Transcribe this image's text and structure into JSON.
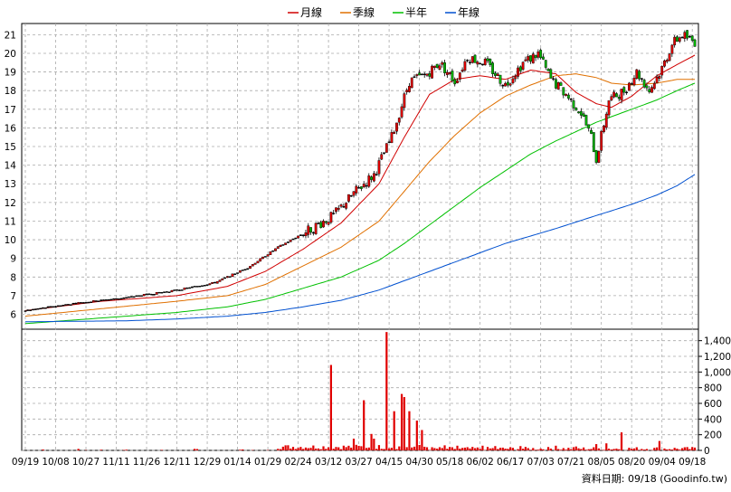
{
  "chart_data": {
    "type": "candlestick",
    "legend": {
      "placement": "top-center",
      "items": [
        {
          "name": "月線",
          "color": "#d00000"
        },
        {
          "name": "季線",
          "color": "#e07000"
        },
        {
          "name": "半年",
          "color": "#00c000"
        },
        {
          "name": "年線",
          "color": "#0050d0"
        }
      ]
    },
    "price_axis": {
      "ylim": [
        5.2,
        21.6
      ],
      "ticks": [
        6,
        7,
        8,
        9,
        10,
        11,
        12,
        13,
        14,
        15,
        16,
        17,
        18,
        19,
        20,
        21
      ],
      "grid": true
    },
    "volume_axis": {
      "ylim": [
        0,
        1500
      ],
      "ticks": [
        0,
        200,
        400,
        600,
        800,
        1000,
        1200,
        1400
      ],
      "tick_labels": [
        "0",
        "200",
        "400",
        "600",
        "800",
        "1,000",
        "1,200",
        "1,400"
      ]
    },
    "x_axis": {
      "tick_labels": [
        "09/19",
        "10/08",
        "10/27",
        "11/11",
        "11/26",
        "12/11",
        "12/29",
        "01/14",
        "01/29",
        "02/24",
        "03/12",
        "03/27",
        "04/15",
        "04/30",
        "05/18",
        "06/02",
        "06/17",
        "07/03",
        "07/21",
        "08/05",
        "08/20",
        "09/04",
        "09/18"
      ],
      "tick_index": [
        0,
        12,
        24,
        36,
        48,
        60,
        72,
        84,
        96,
        108,
        120,
        132,
        144,
        156,
        168,
        180,
        192,
        204,
        216,
        228,
        240,
        252,
        264
      ]
    },
    "footer": "資料日期: 09/18  (Goodinfo.tw)",
    "bars": 266,
    "price_anchors": [
      [
        0,
        6.2
      ],
      [
        20,
        6.6
      ],
      [
        40,
        6.9
      ],
      [
        60,
        7.3
      ],
      [
        75,
        7.7
      ],
      [
        88,
        8.5
      ],
      [
        100,
        9.6
      ],
      [
        112,
        10.5
      ],
      [
        122,
        11.3
      ],
      [
        130,
        12.5
      ],
      [
        138,
        13.5
      ],
      [
        145,
        15.5
      ],
      [
        152,
        18.5
      ],
      [
        158,
        18.8
      ],
      [
        164,
        19.5
      ],
      [
        170,
        18.5
      ],
      [
        175,
        19.8
      ],
      [
        182,
        19.5
      ],
      [
        190,
        18.3
      ],
      [
        197,
        19.5
      ],
      [
        203,
        20.0
      ],
      [
        208,
        18.6
      ],
      [
        214,
        17.8
      ],
      [
        220,
        16.8
      ],
      [
        224,
        15.5
      ],
      [
        226,
        14.3
      ],
      [
        231,
        17.5
      ],
      [
        237,
        18.0
      ],
      [
        242,
        19.0
      ],
      [
        247,
        18.0
      ],
      [
        252,
        19.2
      ],
      [
        256,
        20.5
      ],
      [
        260,
        21.0
      ],
      [
        265,
        20.6
      ]
    ],
    "volume_spikes": [
      [
        121,
        1090
      ],
      [
        134,
        640
      ],
      [
        143,
        1510
      ],
      [
        146,
        500
      ],
      [
        149,
        720
      ],
      [
        150,
        680
      ],
      [
        152,
        500
      ],
      [
        155,
        380
      ],
      [
        157,
        260
      ],
      [
        137,
        210
      ],
      [
        130,
        150
      ],
      [
        138,
        150
      ],
      [
        236,
        230
      ],
      [
        251,
        120
      ],
      [
        230,
        90
      ],
      [
        226,
        80
      ],
      [
        210,
        60
      ],
      [
        166,
        65
      ],
      [
        171,
        60
      ],
      [
        181,
        60
      ],
      [
        186,
        55
      ],
      [
        196,
        55
      ],
      [
        218,
        50
      ]
    ],
    "ma_series": [
      {
        "name": "月線",
        "color": "#d00000",
        "points": [
          [
            0,
            6.2
          ],
          [
            30,
            6.7
          ],
          [
            60,
            7.0
          ],
          [
            80,
            7.5
          ],
          [
            95,
            8.3
          ],
          [
            110,
            9.5
          ],
          [
            125,
            10.9
          ],
          [
            140,
            13.0
          ],
          [
            150,
            15.5
          ],
          [
            160,
            17.8
          ],
          [
            170,
            18.6
          ],
          [
            180,
            18.8
          ],
          [
            190,
            18.6
          ],
          [
            200,
            19.1
          ],
          [
            210,
            18.9
          ],
          [
            218,
            17.9
          ],
          [
            226,
            17.3
          ],
          [
            232,
            17.1
          ],
          [
            240,
            17.7
          ],
          [
            250,
            18.8
          ],
          [
            258,
            19.4
          ],
          [
            265,
            19.9
          ]
        ]
      },
      {
        "name": "季線",
        "color": "#e07000",
        "points": [
          [
            0,
            5.9
          ],
          [
            30,
            6.3
          ],
          [
            60,
            6.7
          ],
          [
            80,
            7.0
          ],
          [
            95,
            7.6
          ],
          [
            110,
            8.6
          ],
          [
            125,
            9.6
          ],
          [
            140,
            11.0
          ],
          [
            150,
            12.6
          ],
          [
            160,
            14.2
          ],
          [
            170,
            15.6
          ],
          [
            180,
            16.8
          ],
          [
            190,
            17.7
          ],
          [
            200,
            18.3
          ],
          [
            210,
            18.8
          ],
          [
            218,
            18.9
          ],
          [
            226,
            18.7
          ],
          [
            232,
            18.4
          ],
          [
            240,
            18.3
          ],
          [
            250,
            18.4
          ],
          [
            258,
            18.6
          ],
          [
            265,
            18.6
          ]
        ]
      },
      {
        "name": "半年",
        "color": "#00c000",
        "points": [
          [
            0,
            5.5
          ],
          [
            30,
            5.8
          ],
          [
            60,
            6.1
          ],
          [
            80,
            6.4
          ],
          [
            95,
            6.8
          ],
          [
            110,
            7.4
          ],
          [
            125,
            8.0
          ],
          [
            140,
            8.9
          ],
          [
            150,
            9.8
          ],
          [
            160,
            10.8
          ],
          [
            170,
            11.8
          ],
          [
            180,
            12.8
          ],
          [
            190,
            13.7
          ],
          [
            200,
            14.6
          ],
          [
            210,
            15.3
          ],
          [
            218,
            15.8
          ],
          [
            226,
            16.3
          ],
          [
            232,
            16.6
          ],
          [
            240,
            17.0
          ],
          [
            250,
            17.5
          ],
          [
            258,
            18.0
          ],
          [
            265,
            18.4
          ]
        ]
      },
      {
        "name": "年線",
        "color": "#0050d0",
        "points": [
          [
            0,
            5.6
          ],
          [
            40,
            5.65
          ],
          [
            60,
            5.75
          ],
          [
            80,
            5.9
          ],
          [
            95,
            6.1
          ],
          [
            110,
            6.4
          ],
          [
            125,
            6.75
          ],
          [
            140,
            7.3
          ],
          [
            150,
            7.8
          ],
          [
            160,
            8.3
          ],
          [
            170,
            8.8
          ],
          [
            180,
            9.3
          ],
          [
            190,
            9.8
          ],
          [
            200,
            10.2
          ],
          [
            210,
            10.6
          ],
          [
            218,
            10.95
          ],
          [
            226,
            11.3
          ],
          [
            232,
            11.55
          ],
          [
            240,
            11.9
          ],
          [
            250,
            12.4
          ],
          [
            258,
            12.9
          ],
          [
            265,
            13.5
          ]
        ]
      }
    ]
  }
}
